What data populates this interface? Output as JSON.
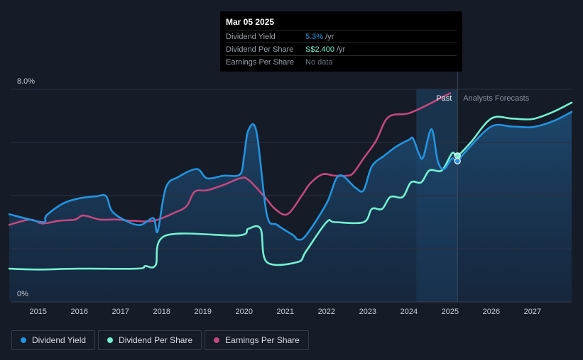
{
  "tooltip": {
    "date": "Mar 05 2025",
    "rows": [
      {
        "label": "Dividend Yield",
        "value": "5.3%",
        "unit": "/yr",
        "color": "#2394df"
      },
      {
        "label": "Dividend Per Share",
        "value": "S$2.400",
        "unit": "/yr",
        "color": "#75f0d1"
      },
      {
        "label": "Earnings Per Share",
        "value": "No data",
        "unit": "",
        "color": "#6b7280"
      }
    ]
  },
  "legend": [
    {
      "label": "Dividend Yield",
      "color": "#2394df"
    },
    {
      "label": "Dividend Per Share",
      "color": "#75f0d1"
    },
    {
      "label": "Earnings Per Share",
      "color": "#c2487f"
    }
  ],
  "chart_data": {
    "type": "line",
    "title": "",
    "y_tick_labels": [
      "8.0%",
      "0%"
    ],
    "ylim": [
      0,
      8
    ],
    "xlim": [
      2014.35,
      2027.95
    ],
    "x_ticks": [
      2015,
      2016,
      2017,
      2018,
      2019,
      2020,
      2021,
      2022,
      2023,
      2024,
      2025,
      2026,
      2027
    ],
    "past_label": "Past",
    "forecast_label": "Analysts Forecasts",
    "past_region": [
      2024.18,
      2025.18
    ],
    "cursor_x": 2025.18,
    "series": [
      {
        "name": "Dividend Yield",
        "unit": "%",
        "color": "#2394df",
        "points": [
          [
            2014.3,
            3.3
          ],
          [
            2014.8,
            3.1
          ],
          [
            2015.15,
            3.0
          ],
          [
            2015.2,
            3.25
          ],
          [
            2015.6,
            3.7
          ],
          [
            2016.0,
            3.9
          ],
          [
            2016.4,
            3.97
          ],
          [
            2016.65,
            3.98
          ],
          [
            2016.8,
            3.4
          ],
          [
            2017.2,
            3.0
          ],
          [
            2017.5,
            2.9
          ],
          [
            2017.8,
            3.15
          ],
          [
            2017.9,
            2.65
          ],
          [
            2018.1,
            4.3
          ],
          [
            2018.4,
            4.7
          ],
          [
            2018.85,
            5.0
          ],
          [
            2019.1,
            4.65
          ],
          [
            2019.5,
            4.75
          ],
          [
            2019.9,
            4.8
          ],
          [
            2020.0,
            5.5
          ],
          [
            2020.1,
            6.45
          ],
          [
            2020.3,
            6.4
          ],
          [
            2020.55,
            3.3
          ],
          [
            2020.8,
            2.9
          ],
          [
            2021.2,
            2.5
          ],
          [
            2021.3,
            2.35
          ],
          [
            2021.5,
            2.5
          ],
          [
            2022.0,
            3.7
          ],
          [
            2022.3,
            4.75
          ],
          [
            2022.7,
            4.3
          ],
          [
            2022.9,
            4.2
          ],
          [
            2023.1,
            5.1
          ],
          [
            2023.4,
            5.5
          ],
          [
            2023.7,
            5.85
          ],
          [
            2024.0,
            6.1
          ],
          [
            2024.1,
            6.15
          ],
          [
            2024.25,
            5.55
          ],
          [
            2024.35,
            5.45
          ],
          [
            2024.55,
            6.5
          ],
          [
            2024.7,
            5.3
          ],
          [
            2024.85,
            5.0
          ],
          [
            2025.05,
            5.4
          ],
          [
            2025.18,
            5.3
          ],
          [
            2025.4,
            5.7
          ],
          [
            2026.0,
            6.6
          ],
          [
            2026.5,
            6.6
          ],
          [
            2027.0,
            6.58
          ],
          [
            2027.5,
            6.8
          ],
          [
            2027.95,
            7.15
          ]
        ]
      },
      {
        "name": "Dividend Per Share",
        "unit": "S$",
        "color": "#75f0d1",
        "points": [
          [
            2014.3,
            1.25
          ],
          [
            2015.0,
            1.22
          ],
          [
            2016.0,
            1.25
          ],
          [
            2017.4,
            1.25
          ],
          [
            2017.6,
            1.35
          ],
          [
            2017.85,
            1.38
          ],
          [
            2018.1,
            2.5
          ],
          [
            2019.85,
            2.5
          ],
          [
            2020.1,
            2.75
          ],
          [
            2020.4,
            2.75
          ],
          [
            2020.55,
            1.5
          ],
          [
            2021.3,
            1.5
          ],
          [
            2021.5,
            1.9
          ],
          [
            2022.0,
            3.0
          ],
          [
            2022.2,
            3.0
          ],
          [
            2022.9,
            3.0
          ],
          [
            2023.1,
            3.5
          ],
          [
            2023.35,
            3.5
          ],
          [
            2023.55,
            3.95
          ],
          [
            2023.85,
            3.95
          ],
          [
            2024.05,
            4.5
          ],
          [
            2024.3,
            4.5
          ],
          [
            2024.5,
            4.95
          ],
          [
            2024.8,
            4.95
          ],
          [
            2025.05,
            5.6
          ],
          [
            2025.18,
            5.5
          ],
          [
            2025.5,
            6.0
          ],
          [
            2026.0,
            6.9
          ],
          [
            2026.5,
            6.9
          ],
          [
            2027.0,
            6.88
          ],
          [
            2027.5,
            7.15
          ],
          [
            2027.95,
            7.5
          ]
        ]
      },
      {
        "name": "Earnings Per Share",
        "unit": "S$",
        "color": "#c2487f",
        "points": [
          [
            2014.3,
            2.9
          ],
          [
            2014.8,
            3.1
          ],
          [
            2015.1,
            2.95
          ],
          [
            2015.5,
            3.05
          ],
          [
            2015.9,
            3.1
          ],
          [
            2016.1,
            3.25
          ],
          [
            2016.5,
            3.1
          ],
          [
            2016.9,
            3.1
          ],
          [
            2017.3,
            3.05
          ],
          [
            2017.8,
            3.05
          ],
          [
            2018.3,
            3.35
          ],
          [
            2018.6,
            3.6
          ],
          [
            2018.8,
            4.15
          ],
          [
            2019.1,
            4.2
          ],
          [
            2019.5,
            4.4
          ],
          [
            2019.9,
            4.65
          ],
          [
            2020.1,
            4.6
          ],
          [
            2020.5,
            3.95
          ],
          [
            2020.75,
            3.5
          ],
          [
            2021.05,
            3.3
          ],
          [
            2021.4,
            4.0
          ],
          [
            2021.6,
            4.45
          ],
          [
            2021.9,
            4.8
          ],
          [
            2022.2,
            4.75
          ],
          [
            2022.5,
            4.75
          ],
          [
            2022.65,
            4.85
          ],
          [
            2022.9,
            5.4
          ],
          [
            2023.2,
            6.05
          ],
          [
            2023.5,
            6.95
          ],
          [
            2024.0,
            7.1
          ],
          [
            2024.5,
            7.45
          ],
          [
            2024.8,
            7.7
          ],
          [
            2025.0,
            7.85
          ]
        ]
      }
    ]
  }
}
